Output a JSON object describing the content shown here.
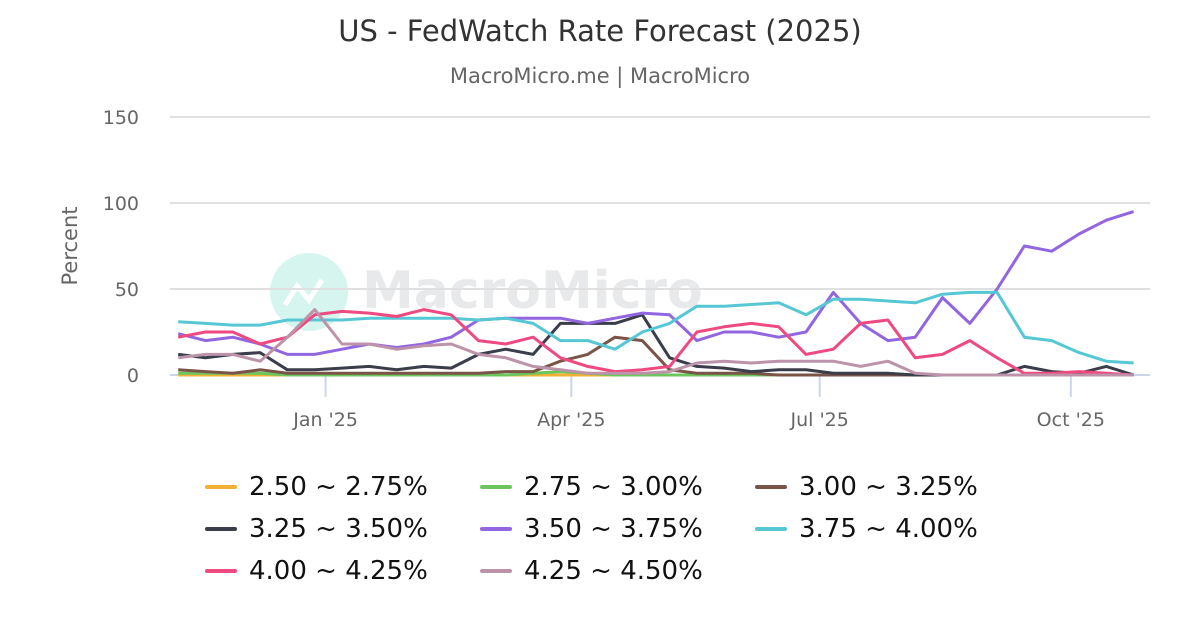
{
  "title": "US - FedWatch Rate Forecast (2025)",
  "subtitle": "MacroMicro.me | MacroMicro",
  "watermark": "MacroMicro",
  "chart_data": {
    "type": "line",
    "title": "US - FedWatch Rate Forecast (2025)",
    "ylabel": "Percent",
    "ylim": [
      0,
      150
    ],
    "yticks": [
      "0",
      "50",
      "100",
      "150"
    ],
    "xlim": [
      "2024-11-05",
      "2025-10-30"
    ],
    "xticks": [
      {
        "date": "2025-01-01",
        "label": "Jan '25"
      },
      {
        "date": "2025-04-01",
        "label": "Apr '25"
      },
      {
        "date": "2025-07-01",
        "label": "Jul '25"
      },
      {
        "date": "2025-10-01",
        "label": "Oct '25"
      }
    ],
    "grid": true,
    "legend_position": "bottom",
    "x": [
      "2024-11-08",
      "2024-11-18",
      "2024-11-28",
      "2024-12-08",
      "2024-12-18",
      "2024-12-28",
      "2025-01-07",
      "2025-01-17",
      "2025-01-27",
      "2025-02-06",
      "2025-02-16",
      "2025-02-26",
      "2025-03-08",
      "2025-03-18",
      "2025-03-28",
      "2025-04-07",
      "2025-04-17",
      "2025-04-27",
      "2025-05-07",
      "2025-05-17",
      "2025-05-27",
      "2025-06-06",
      "2025-06-16",
      "2025-06-26",
      "2025-07-06",
      "2025-07-16",
      "2025-07-26",
      "2025-08-05",
      "2025-08-15",
      "2025-08-25",
      "2025-09-04",
      "2025-09-14",
      "2025-09-24",
      "2025-10-04",
      "2025-10-14",
      "2025-10-24"
    ],
    "series": [
      {
        "name": "2.50 ~ 2.75%",
        "color": "#f2b134",
        "values": [
          0,
          0,
          0,
          0,
          0,
          0,
          0,
          0,
          0,
          0,
          0,
          0,
          0,
          0,
          0,
          0,
          0,
          0,
          0,
          0,
          0,
          0,
          0,
          0,
          0,
          0,
          0,
          0,
          0,
          0,
          0,
          0,
          0,
          0,
          0,
          0
        ]
      },
      {
        "name": "2.75 ~ 3.00%",
        "color": "#6cc65e",
        "values": [
          1,
          1,
          1,
          1,
          0,
          0,
          0,
          0,
          0,
          0,
          0,
          0,
          0,
          1,
          2,
          1,
          0,
          0,
          0,
          0,
          0,
          0,
          0,
          0,
          0,
          0,
          0,
          0,
          0,
          0,
          0,
          0,
          0,
          0,
          0,
          0
        ]
      },
      {
        "name": "3.00 ~ 3.25%",
        "color": "#7a5446",
        "values": [
          3,
          2,
          1,
          3,
          1,
          1,
          1,
          1,
          1,
          1,
          1,
          1,
          2,
          2,
          8,
          12,
          22,
          20,
          3,
          1,
          1,
          1,
          0,
          0,
          0,
          0,
          0,
          0,
          0,
          0,
          0,
          0,
          0,
          0,
          0,
          0
        ]
      },
      {
        "name": "3.25 ~ 3.50%",
        "color": "#3a3d4a",
        "values": [
          12,
          10,
          12,
          13,
          3,
          3,
          4,
          5,
          3,
          5,
          4,
          12,
          15,
          12,
          30,
          30,
          30,
          35,
          10,
          5,
          4,
          2,
          3,
          3,
          1,
          1,
          1,
          0,
          0,
          0,
          0,
          5,
          2,
          1,
          5,
          0
        ]
      },
      {
        "name": "3.50 ~ 3.75%",
        "color": "#9166e0",
        "values": [
          24,
          20,
          22,
          18,
          12,
          12,
          15,
          18,
          16,
          18,
          22,
          32,
          33,
          33,
          33,
          30,
          33,
          36,
          35,
          20,
          25,
          25,
          22,
          25,
          48,
          30,
          20,
          22,
          45,
          30,
          50,
          75,
          72,
          82,
          90,
          95
        ]
      },
      {
        "name": "3.75 ~ 4.00%",
        "color": "#56c7d4",
        "values": [
          31,
          30,
          29,
          29,
          32,
          32,
          32,
          33,
          33,
          33,
          33,
          32,
          33,
          30,
          20,
          20,
          15,
          25,
          30,
          40,
          40,
          41,
          42,
          35,
          44,
          44,
          43,
          42,
          47,
          48,
          48,
          22,
          20,
          13,
          8,
          7
        ]
      },
      {
        "name": "4.00 ~ 4.25%",
        "color": "#ef4a80",
        "values": [
          22,
          25,
          25,
          18,
          22,
          35,
          37,
          36,
          34,
          38,
          35,
          20,
          18,
          22,
          10,
          5,
          2,
          3,
          5,
          25,
          28,
          30,
          28,
          12,
          15,
          30,
          32,
          10,
          12,
          20,
          10,
          1,
          1,
          2,
          1,
          0
        ]
      },
      {
        "name": "4.25 ~ 4.50%",
        "color": "#bc93a8",
        "values": [
          10,
          12,
          12,
          8,
          22,
          38,
          18,
          18,
          15,
          17,
          18,
          12,
          10,
          5,
          3,
          1,
          1,
          1,
          2,
          7,
          8,
          7,
          8,
          8,
          8,
          5,
          8,
          1,
          0,
          0,
          0,
          0,
          0,
          0,
          0,
          0
        ]
      }
    ]
  }
}
